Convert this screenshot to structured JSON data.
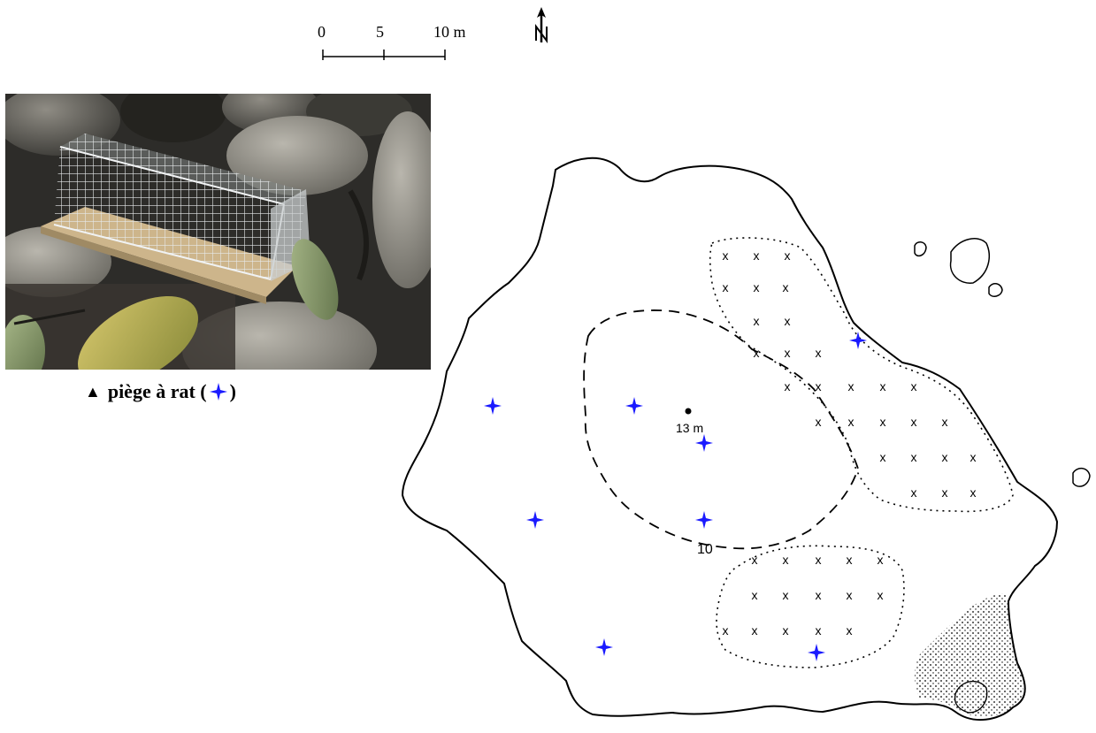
{
  "scale_bar": {
    "labels": [
      "0",
      "5",
      "10 m"
    ]
  },
  "north_arrow": {
    "icon": "north-arrow-icon"
  },
  "photo": {
    "subject": "rat-trap-cage-photo"
  },
  "caption": {
    "triangle": "▲",
    "text_before": "piège à rat (",
    "text_after": ")"
  },
  "map": {
    "summit_label": "13 m",
    "contour_label": "10",
    "trap_marker_color": "#1a1aff",
    "trap_icon": "blue-cross-star-icon",
    "vegetation_marker": "x"
  }
}
